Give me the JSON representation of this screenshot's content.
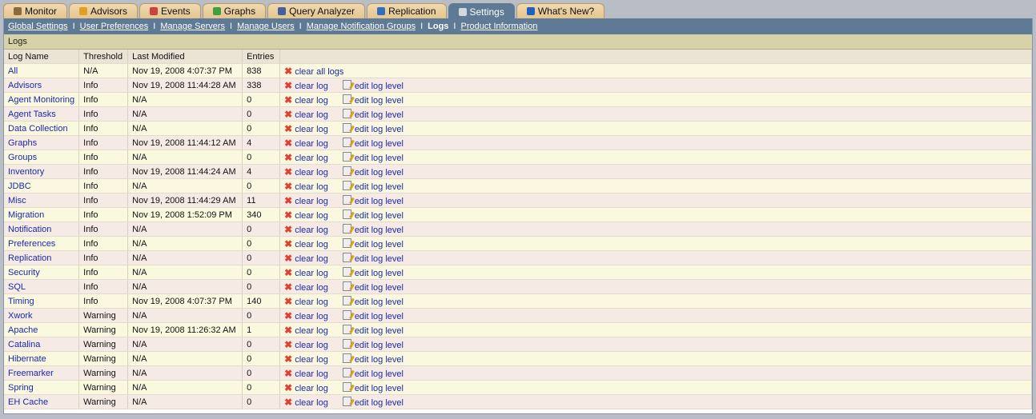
{
  "tabs": [
    {
      "label": "Monitor",
      "icon": "home-icon",
      "color": "#8a6a40"
    },
    {
      "label": "Advisors",
      "icon": "shield-icon",
      "color": "#e0a020"
    },
    {
      "label": "Events",
      "icon": "alarm-clock-icon",
      "color": "#d04040"
    },
    {
      "label": "Graphs",
      "icon": "graph-icon",
      "color": "#40a040"
    },
    {
      "label": "Query Analyzer",
      "icon": "query-icon",
      "color": "#4060a0"
    },
    {
      "label": "Replication",
      "icon": "replication-icon",
      "color": "#3070c0"
    },
    {
      "label": "Settings",
      "icon": "settings-icon",
      "color": "#d0d8e0",
      "active": true
    },
    {
      "label": "What's New?",
      "icon": "info-icon",
      "color": "#2060c0"
    }
  ],
  "subnav": [
    "Global Settings",
    "User Preferences",
    "Manage Servers",
    "Manage Users",
    "Manage Notification Groups",
    "Logs",
    "Product Information"
  ],
  "section_title": "Logs",
  "columns": [
    "Log Name",
    "Threshold",
    "Last Modified",
    "Entries",
    ""
  ],
  "clear_all_label": "clear all logs",
  "clear_label": "clear log",
  "edit_label": "edit log level",
  "rows": [
    [
      "All",
      "N/A",
      "Nov 19, 2008 4:07:37 PM",
      "838"
    ],
    [
      "Advisors",
      "Info",
      "Nov 19, 2008 11:44:28 AM",
      "338"
    ],
    [
      "Agent Monitoring",
      "Info",
      "N/A",
      "0"
    ],
    [
      "Agent Tasks",
      "Info",
      "N/A",
      "0"
    ],
    [
      "Data Collection",
      "Info",
      "N/A",
      "0"
    ],
    [
      "Graphs",
      "Info",
      "Nov 19, 2008 11:44:12 AM",
      "4"
    ],
    [
      "Groups",
      "Info",
      "N/A",
      "0"
    ],
    [
      "Inventory",
      "Info",
      "Nov 19, 2008 11:44:24 AM",
      "4"
    ],
    [
      "JDBC",
      "Info",
      "N/A",
      "0"
    ],
    [
      "Misc",
      "Info",
      "Nov 19, 2008 11:44:29 AM",
      "11"
    ],
    [
      "Migration",
      "Info",
      "Nov 19, 2008 1:52:09 PM",
      "340"
    ],
    [
      "Notification",
      "Info",
      "N/A",
      "0"
    ],
    [
      "Preferences",
      "Info",
      "N/A",
      "0"
    ],
    [
      "Replication",
      "Info",
      "N/A",
      "0"
    ],
    [
      "Security",
      "Info",
      "N/A",
      "0"
    ],
    [
      "SQL",
      "Info",
      "N/A",
      "0"
    ],
    [
      "Timing",
      "Info",
      "Nov 19, 2008 4:07:37 PM",
      "140"
    ],
    [
      "Xwork",
      "Warning",
      "N/A",
      "0"
    ],
    [
      "Apache",
      "Warning",
      "Nov 19, 2008 11:26:32 AM",
      "1"
    ],
    [
      "Catalina",
      "Warning",
      "N/A",
      "0"
    ],
    [
      "Hibernate",
      "Warning",
      "N/A",
      "0"
    ],
    [
      "Freemarker",
      "Warning",
      "N/A",
      "0"
    ],
    [
      "Spring",
      "Warning",
      "N/A",
      "0"
    ],
    [
      "EH Cache",
      "Warning",
      "N/A",
      "0"
    ]
  ]
}
